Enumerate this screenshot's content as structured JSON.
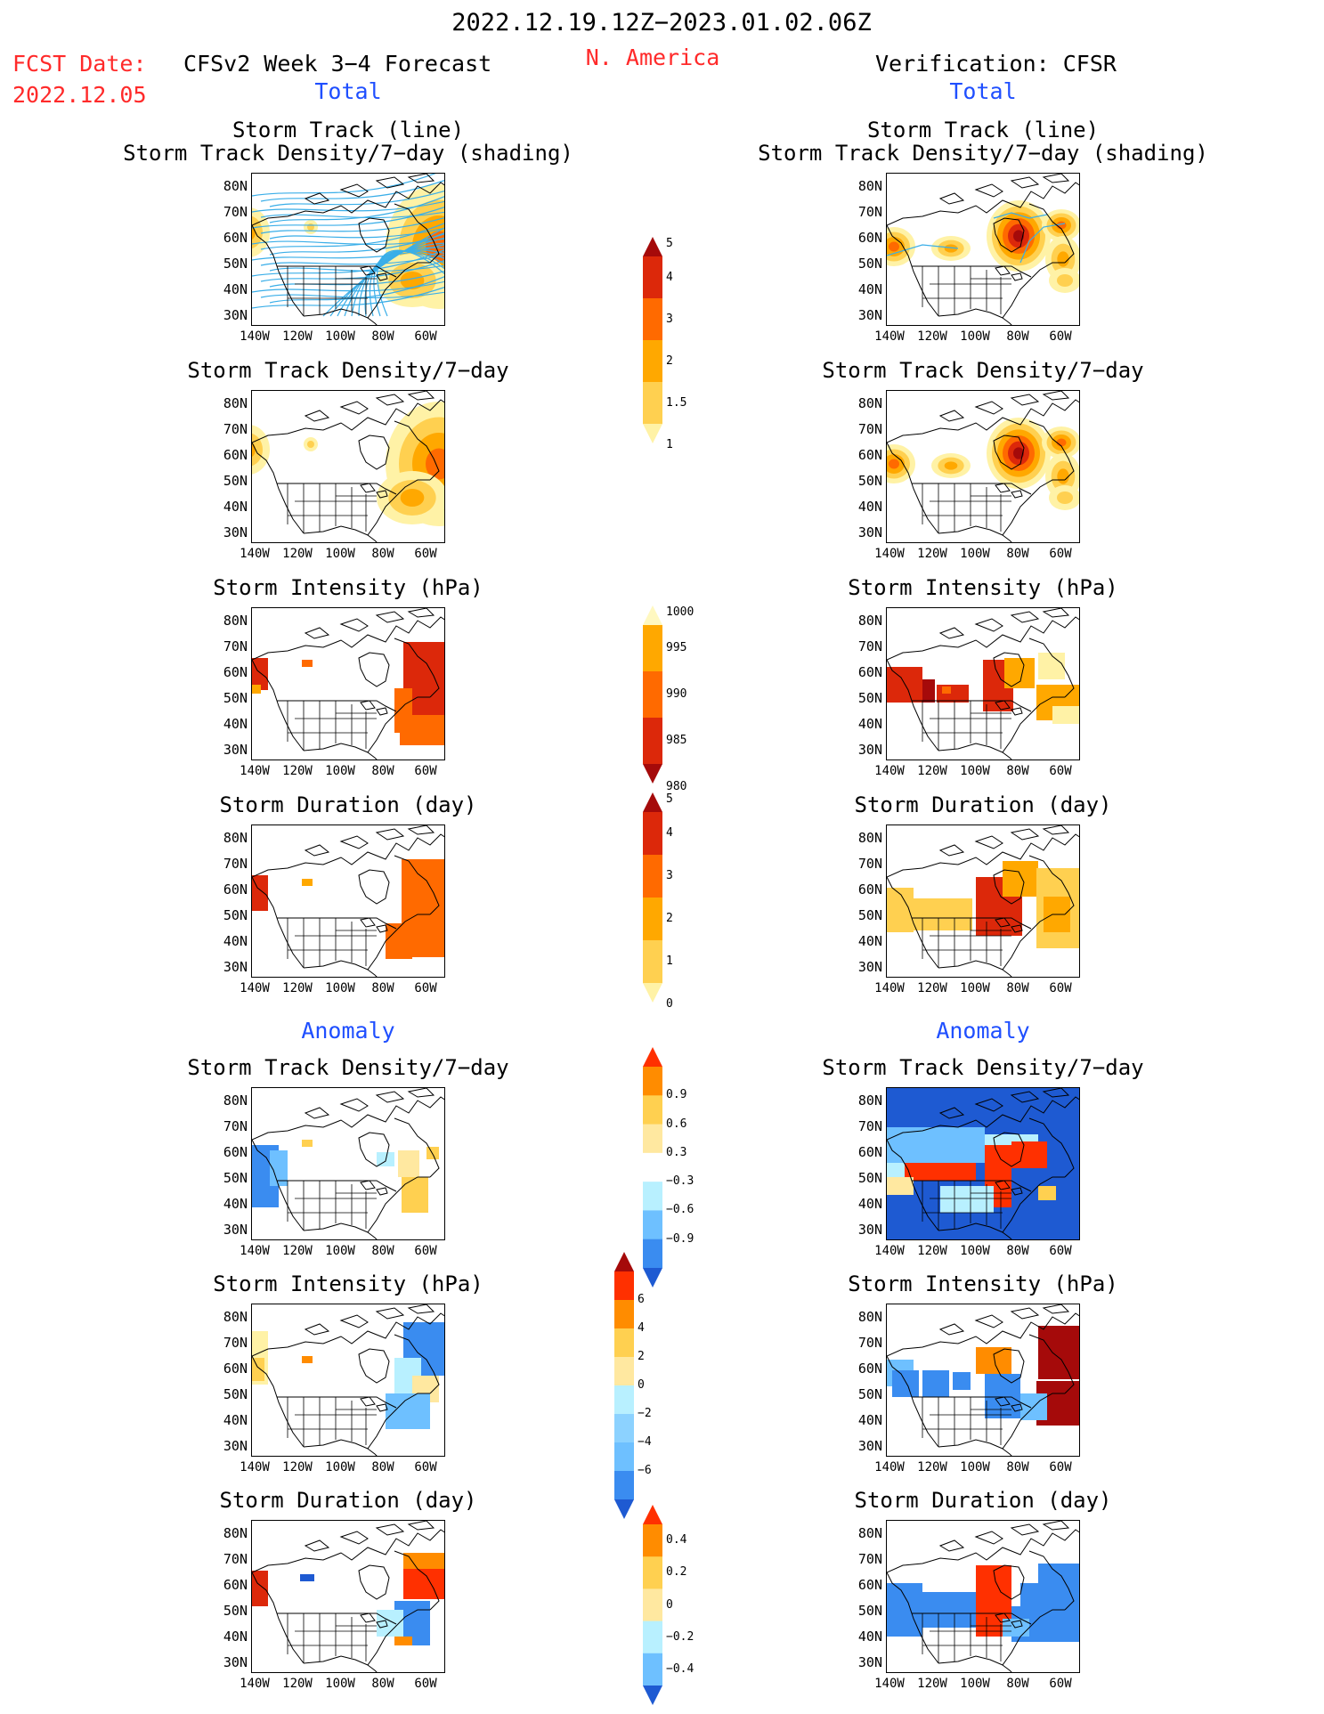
{
  "header": {
    "period": "2022.12.19.12Z−2023.01.02.06Z",
    "fcst_date_label": "FCST Date:",
    "fcst_date_value": "2022.12.05",
    "forecast_title": "CFSv2 Week 3−4 Forecast",
    "region": "N. America",
    "verification_title": "Verification: CFSR"
  },
  "sections": {
    "total_left": "Total",
    "total_right": "Total",
    "anomaly_left": "Anomaly",
    "anomaly_right": "Anomaly"
  },
  "panel_titles": {
    "track_line": "Storm Track (line)",
    "track_shading": "Storm Track Density/7−day (shading)",
    "density": "Storm Track Density/7−day",
    "intensity": "Storm Intensity (hPa)",
    "duration": "Storm Duration (day)"
  },
  "axes": {
    "lat_ticks": [
      "80N",
      "70N",
      "60N",
      "50N",
      "40N",
      "30N"
    ],
    "lon_ticks": [
      "140W",
      "120W",
      "100W",
      "80W",
      "60W"
    ]
  },
  "colorbars": [
    {
      "id": "total-density",
      "labels": [
        "5",
        "4",
        "3",
        "2",
        "1.5",
        "1"
      ],
      "colors": [
        "#a50a0a",
        "#dc280a",
        "#ff6a00",
        "#ffa800",
        "#ffd050",
        "#fff2a6"
      ]
    },
    {
      "id": "total-intensity",
      "labels": [
        "1000",
        "995",
        "990",
        "985",
        "980"
      ],
      "colors": [
        "#fff8c0",
        "#ffa800",
        "#ff6a00",
        "#dc280a",
        "#a50a0a"
      ]
    },
    {
      "id": "total-duration",
      "labels": [
        "5",
        "4",
        "3",
        "2",
        "1",
        "0"
      ],
      "colors": [
        "#a50a0a",
        "#dc280a",
        "#ff6a00",
        "#ffa800",
        "#ffd050",
        "#fff2a6"
      ]
    },
    {
      "id": "anom-density",
      "labels": [
        "0.9",
        "0.6",
        "0.3",
        "−0.3",
        "−0.6",
        "−0.9"
      ],
      "colors": [
        "#ff3000",
        "#ff8c00",
        "#ffd050",
        "#ffe8a0",
        "#ffffff",
        "#b8f0ff",
        "#6ec0ff",
        "#3a8cf0",
        "#1e5ad2"
      ]
    },
    {
      "id": "anom-intensity",
      "labels": [
        "6",
        "4",
        "2",
        "0",
        "−2",
        "−4",
        "−6"
      ],
      "colors": [
        "#a50a0a",
        "#ff3000",
        "#ff8c00",
        "#ffd050",
        "#ffe8a0",
        "#b8f0ff",
        "#8cd2ff",
        "#6ec0ff",
        "#3a8cf0",
        "#1e5ad2"
      ]
    },
    {
      "id": "anom-duration",
      "labels": [
        "0.4",
        "0.2",
        "0",
        "−0.2",
        "−0.4"
      ],
      "colors": [
        "#ff3000",
        "#ff8c00",
        "#ffd050",
        "#ffe8a0",
        "#b8f0ff",
        "#6ec0ff",
        "#1e5ad2"
      ]
    }
  ],
  "colors": {
    "header_red": "#ff2a2a",
    "section_blue": "#1f4fff",
    "track_line": "#3aaee8"
  }
}
